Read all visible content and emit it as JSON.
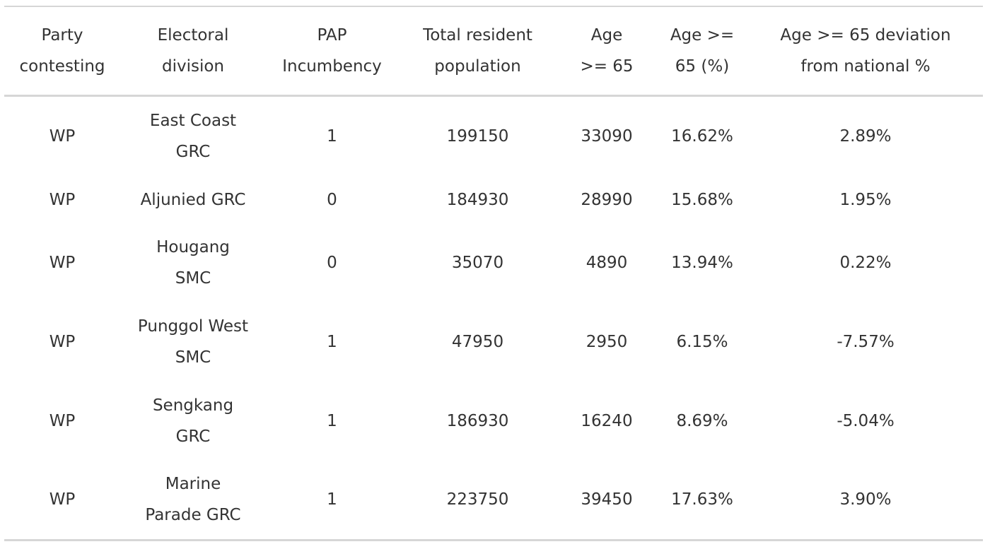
{
  "table": {
    "headers": {
      "party": [
        "Party",
        "contesting"
      ],
      "division": [
        "Electoral",
        "division"
      ],
      "incumbency": [
        "PAP",
        "Incumbency"
      ],
      "population": [
        "Total resident",
        "population"
      ],
      "age65": [
        "Age",
        ">= 65"
      ],
      "age65_pct": [
        "Age >=",
        "65 (%)"
      ],
      "deviation": [
        "Age >= 65 deviation",
        "from national %"
      ]
    },
    "rows": [
      {
        "party": "WP",
        "division": [
          "East Coast",
          "GRC"
        ],
        "incumbency": "1",
        "population": "199150",
        "age65": "33090",
        "age65_pct": "16.62%",
        "deviation": "2.89%"
      },
      {
        "party": "WP",
        "division": [
          "Aljunied GRC"
        ],
        "incumbency": "0",
        "population": "184930",
        "age65": "28990",
        "age65_pct": "15.68%",
        "deviation": "1.95%"
      },
      {
        "party": "WP",
        "division": [
          "Hougang",
          "SMC"
        ],
        "incumbency": "0",
        "population": "35070",
        "age65": "4890",
        "age65_pct": "13.94%",
        "deviation": "0.22%"
      },
      {
        "party": "WP",
        "division": [
          "Punggol West",
          "SMC"
        ],
        "incumbency": "1",
        "population": "47950",
        "age65": "2950",
        "age65_pct": "6.15%",
        "deviation": "-7.57%"
      },
      {
        "party": "WP",
        "division": [
          "Sengkang",
          "GRC"
        ],
        "incumbency": "1",
        "population": "186930",
        "age65": "16240",
        "age65_pct": "8.69%",
        "deviation": "-5.04%"
      },
      {
        "party": "WP",
        "division": [
          "Marine",
          "Parade GRC"
        ],
        "incumbency": "1",
        "population": "223750",
        "age65": "39450",
        "age65_pct": "17.63%",
        "deviation": "3.90%"
      }
    ]
  }
}
